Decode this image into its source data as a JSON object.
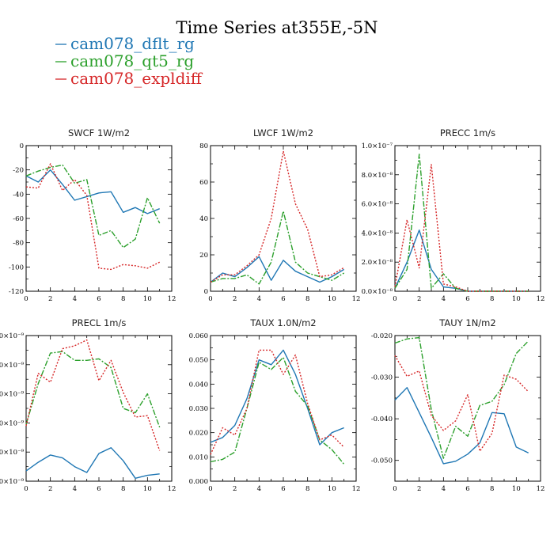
{
  "figure_title": "Time Series at355E,-5N",
  "legend": [
    {
      "label": "cam078_dflt_rg",
      "color": "#1f77b4",
      "dash": "solid"
    },
    {
      "label": "cam078_qt5_rg",
      "color": "#2ca02c",
      "dash": "dashdot"
    },
    {
      "label": "cam078_expldiff",
      "color": "#d62728",
      "dash": "dotted"
    }
  ],
  "chart_data": [
    {
      "type": "line",
      "title": "SWCF   1W/m2",
      "x": [
        0,
        1,
        2,
        3,
        4,
        5,
        6,
        7,
        8,
        9,
        10,
        11
      ],
      "xlim": [
        0,
        12
      ],
      "xticks": [
        "0",
        "2",
        "4",
        "6",
        "8",
        "10",
        "12"
      ],
      "ylim": [
        -120,
        0
      ],
      "yticks": [
        -120,
        -100,
        -80,
        -60,
        -40,
        -20,
        0
      ],
      "ytick_labels": [
        "-120",
        "-100",
        "-80",
        "-60",
        "-40",
        "-20",
        "0"
      ],
      "series": [
        {
          "name": "cam078_dflt_rg",
          "values": [
            -25,
            -30,
            -20,
            -32,
            -45,
            -42,
            -39,
            -38,
            -55,
            -51,
            -56,
            -52
          ]
        },
        {
          "name": "cam078_qt5_rg",
          "values": [
            -25,
            -21,
            -18,
            -16,
            -31,
            -28,
            -74,
            -70,
            -84,
            -77,
            -43,
            -64
          ]
        },
        {
          "name": "cam078_expldiff",
          "values": [
            -34,
            -35,
            -15,
            -37,
            -28,
            -41,
            -101,
            -102,
            -98,
            -99,
            -101,
            -96
          ]
        }
      ]
    },
    {
      "type": "line",
      "title": "LWCF   1W/m2",
      "x": [
        0,
        1,
        2,
        3,
        4,
        5,
        6,
        7,
        8,
        9,
        10,
        11
      ],
      "xlim": [
        0,
        12
      ],
      "xticks": [
        "0",
        "2",
        "4",
        "6",
        "8",
        "10",
        "12"
      ],
      "ylim": [
        0,
        80
      ],
      "yticks": [
        0,
        20,
        40,
        60,
        80
      ],
      "ytick_labels": [
        "0",
        "20",
        "40",
        "60",
        "80"
      ],
      "series": [
        {
          "name": "cam078_dflt_rg",
          "values": [
            5,
            10,
            8,
            13,
            19,
            6,
            17,
            11,
            8,
            5,
            8,
            12
          ]
        },
        {
          "name": "cam078_qt5_rg",
          "values": [
            5,
            7,
            7,
            9,
            4,
            16,
            44,
            16,
            10,
            8,
            6,
            10
          ]
        },
        {
          "name": "cam078_expldiff",
          "values": [
            5,
            9,
            9,
            14,
            20,
            40,
            77,
            48,
            34,
            8,
            9,
            13
          ]
        }
      ]
    },
    {
      "type": "line",
      "title": "PRECC   1m/s",
      "x": [
        0,
        1,
        2,
        3,
        4,
        5,
        6,
        7,
        8,
        9,
        10,
        11
      ],
      "xlim": [
        0,
        12
      ],
      "xticks": [
        "0",
        "2",
        "4",
        "6",
        "8",
        "10",
        "12"
      ],
      "ylim": [
        0,
        1e-07
      ],
      "yticks": [
        0,
        2e-08,
        4e-08,
        6e-08,
        8e-08,
        1e-07
      ],
      "ytick_labels": [
        "0.0×10⁻⁸",
        "2.0×10⁻⁸",
        "4.0×10⁻⁸",
        "6.0×10⁻⁸",
        "8.0×10⁻⁸",
        "1.0×10⁻⁷"
      ],
      "series": [
        {
          "name": "cam078_dflt_rg",
          "values": [
            2e-09,
            2e-08,
            4.2e-08,
            1.5e-08,
            3e-09,
            2e-09,
            0,
            0,
            0,
            0,
            0,
            0
          ]
        },
        {
          "name": "cam078_qt5_rg",
          "values": [
            2e-09,
            1.5e-08,
            9.4e-08,
            2e-09,
            1.2e-08,
            2e-09,
            0,
            0,
            0,
            0,
            0,
            0
          ]
        },
        {
          "name": "cam078_expldiff",
          "values": [
            3e-09,
            4.9e-08,
            1.6e-08,
            8.7e-08,
            5e-09,
            3e-09,
            0,
            0,
            0,
            0,
            0,
            0
          ]
        }
      ]
    },
    {
      "type": "line",
      "title": "PRECL   1m/s",
      "x": [
        0,
        1,
        2,
        3,
        4,
        5,
        6,
        7,
        8,
        9,
        10,
        11
      ],
      "xlim": [
        0,
        12
      ],
      "xticks": [
        "0",
        "2",
        "4",
        "6",
        "8",
        "10",
        "12"
      ],
      "ylim": [
        0,
        1e-08
      ],
      "yticks": [
        0,
        2e-09,
        4e-09,
        6e-09,
        8e-09,
        1e-08
      ],
      "ytick_labels": [
        ".0×10⁻⁹",
        ".0×10⁻⁹",
        ".0×10⁻⁹",
        ".0×10⁻⁹",
        ".0×10⁻⁹",
        ".0×10⁻⁹"
      ],
      "series": [
        {
          "name": "cam078_dflt_rg",
          "values": [
            7e-10,
            1.3e-09,
            1.8e-09,
            1.6e-09,
            1e-09,
            6e-10,
            1.9e-09,
            2.3e-09,
            1.4e-09,
            2e-10,
            4e-10,
            5e-10
          ]
        },
        {
          "name": "cam078_qt5_rg",
          "values": [
            3.9e-09,
            6.7e-09,
            8.8e-09,
            8.9e-09,
            8.3e-09,
            8.3e-09,
            8.4e-09,
            7.8e-09,
            5e-09,
            4.7e-09,
            6e-09,
            3.7e-09
          ]
        },
        {
          "name": "cam078_expldiff",
          "values": [
            3.8e-09,
            7.4e-09,
            6.8e-09,
            9.1e-09,
            9.3e-09,
            9.7e-09,
            6.9e-09,
            8.3e-09,
            6.1e-09,
            4.4e-09,
            4.5e-09,
            2.1e-09
          ]
        }
      ]
    },
    {
      "type": "line",
      "title": "TAUX   1.0N/m2",
      "x": [
        0,
        1,
        2,
        3,
        4,
        5,
        6,
        7,
        8,
        9,
        10,
        11
      ],
      "xlim": [
        0,
        12
      ],
      "xticks": [
        "0",
        "2",
        "4",
        "6",
        "8",
        "10",
        "12"
      ],
      "ylim": [
        0,
        0.06
      ],
      "yticks": [
        0,
        0.01,
        0.02,
        0.03,
        0.04,
        0.05,
        0.06
      ],
      "ytick_labels": [
        "0.000",
        "0.010",
        "0.020",
        "0.030",
        "0.040",
        "0.050",
        "0.060"
      ],
      "series": [
        {
          "name": "cam078_dflt_rg",
          "values": [
            0.016,
            0.018,
            0.023,
            0.034,
            0.05,
            0.048,
            0.054,
            0.044,
            0.03,
            0.015,
            0.02,
            0.022
          ]
        },
        {
          "name": "cam078_qt5_rg",
          "values": [
            0.008,
            0.009,
            0.012,
            0.03,
            0.049,
            0.046,
            0.051,
            0.037,
            0.031,
            0.017,
            0.013,
            0.007
          ]
        },
        {
          "name": "cam078_expldiff",
          "values": [
            0.011,
            0.022,
            0.019,
            0.03,
            0.054,
            0.054,
            0.044,
            0.052,
            0.032,
            0.017,
            0.019,
            0.014
          ]
        }
      ]
    },
    {
      "type": "line",
      "title": "TAUY   1N/m2",
      "x": [
        0,
        1,
        2,
        3,
        4,
        5,
        6,
        7,
        8,
        9,
        10,
        11
      ],
      "xlim": [
        0,
        12
      ],
      "xticks": [
        "0",
        "2",
        "4",
        "6",
        "8",
        "10",
        "12"
      ],
      "ylim": [
        -0.055,
        -0.02
      ],
      "yticks": [
        -0.05,
        -0.04,
        -0.03,
        -0.02
      ],
      "ytick_labels": [
        "-0.050",
        "-0.040",
        "-0.030",
        "-0.020"
      ],
      "series": [
        {
          "name": "cam078_dflt_rg",
          "values": [
            -0.0355,
            -0.0325,
            -0.0385,
            -0.0445,
            -0.0508,
            -0.0502,
            -0.0485,
            -0.0458,
            -0.0385,
            -0.0388,
            -0.0468,
            -0.0482
          ]
        },
        {
          "name": "cam078_qt5_rg",
          "values": [
            -0.0218,
            -0.0208,
            -0.0205,
            -0.0378,
            -0.0495,
            -0.0418,
            -0.0442,
            -0.0368,
            -0.0358,
            -0.0318,
            -0.0243,
            -0.0213
          ]
        },
        {
          "name": "cam078_expldiff",
          "values": [
            -0.0248,
            -0.0298,
            -0.0285,
            -0.0392,
            -0.0428,
            -0.0405,
            -0.0342,
            -0.0478,
            -0.0435,
            -0.0295,
            -0.0305,
            -0.0335
          ]
        }
      ]
    }
  ]
}
